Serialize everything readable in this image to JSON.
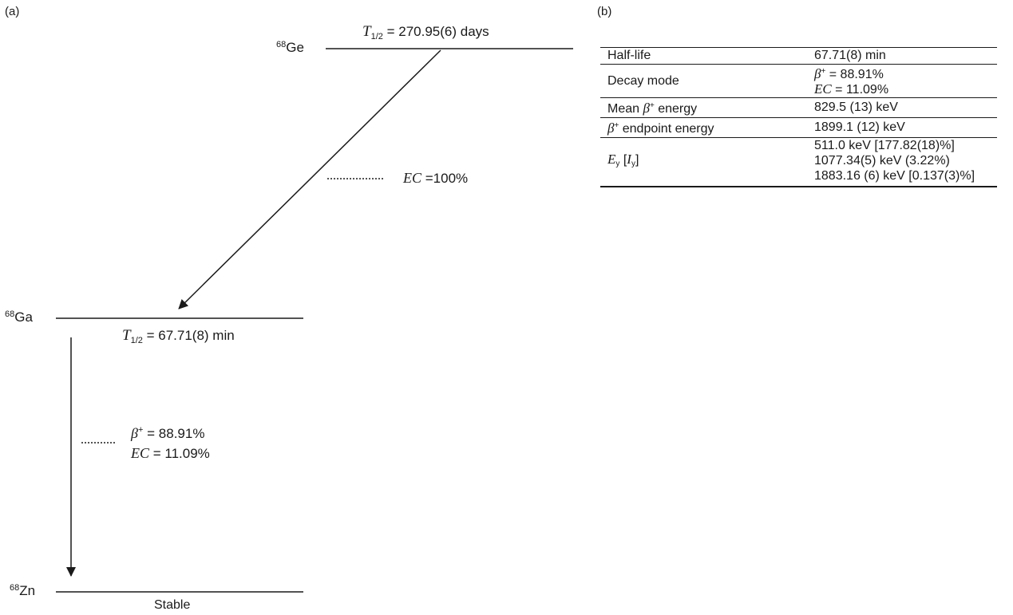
{
  "panel_a": {
    "label": "(a)",
    "ge": {
      "mass": "68",
      "symbol": "Ge",
      "halflife_label": "T",
      "halflife_sub": "1/2",
      "halflife_value": " = 270.95(6) days"
    },
    "ge_decay": {
      "mode": "EC",
      "value": " =100%"
    },
    "ga": {
      "mass": "68",
      "symbol": "Ga",
      "halflife_label": "T",
      "halflife_sub": "1/2",
      "halflife_value": " = 67.71(8) min"
    },
    "ga_decay": {
      "beta_label": "β",
      "beta_sup": "+",
      "beta_value": " = 88.91%",
      "ec_label": "EC",
      "ec_value": " = 11.09%"
    },
    "zn": {
      "mass": "68",
      "symbol": "Zn",
      "status": "Stable"
    }
  },
  "panel_b": {
    "label": "(b)",
    "rows": {
      "halflife": {
        "key": "Half-life",
        "value": "67.71(8) min"
      },
      "decay_mode": {
        "key": "Decay mode",
        "beta_label": "β",
        "beta_sup": "+",
        "beta_value": " = 88.91%",
        "ec_label": "EC",
        "ec_value": " = 11.09%"
      },
      "mean_energy": {
        "key_prefix": "Mean ",
        "key_beta": "β",
        "key_sup": "+",
        "key_suffix": " energy",
        "value": "829.5 (13) keV"
      },
      "endpoint_energy": {
        "key_beta": "β",
        "key_sup": "+",
        "key_suffix": " endpoint energy",
        "value": "1899.1 (12) keV"
      },
      "gamma": {
        "key_e": "E",
        "key_e_sub": "y",
        "key_open": " [",
        "key_i": "I",
        "key_i_sub": "y",
        "key_close": "]",
        "values": [
          "511.0 keV [177.82(18)%]",
          "1077.34(5) keV (3.22%)",
          "1883.16 (6) keV [0.137(3)%]"
        ]
      }
    }
  }
}
